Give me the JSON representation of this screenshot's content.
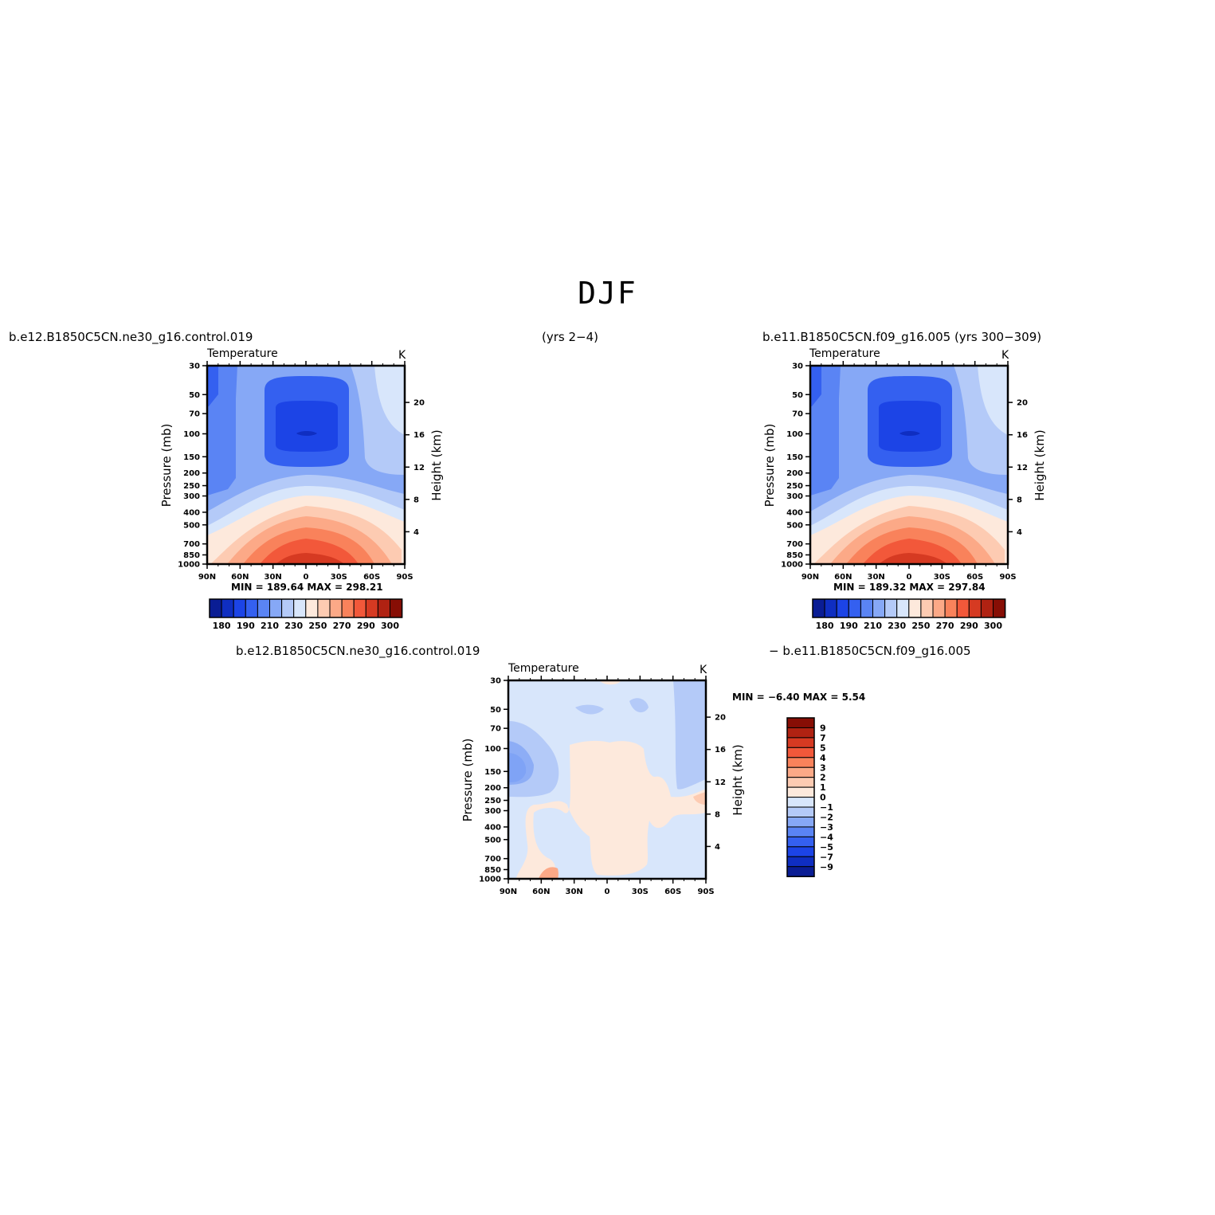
{
  "title": "DJF",
  "colors": {
    "scale": [
      "#0a1d94",
      "#0f2ec1",
      "#1c44e6",
      "#3460f0",
      "#5a84f4",
      "#86a8f6",
      "#b4caf8",
      "#d8e6fb",
      "#fde9dc",
      "#fdcbb2",
      "#fca987",
      "#f9825b",
      "#f2583a",
      "#d63a22",
      "#b02212",
      "#870e05"
    ]
  },
  "panels": {
    "left": {
      "case_left": "b.e12.B1850C5CN.ne30_g16.control.019",
      "case_right": "(yrs 2−4)",
      "variable": "Temperature",
      "units": "K",
      "min_label": "MIN = 189.64   MAX = 298.21"
    },
    "right": {
      "case_label": "b.e11.B1850C5CN.f09_g16.005 (yrs 300−309)",
      "variable": "Temperature",
      "units": "K",
      "min_label": "MIN = 189.32   MAX = 297.84"
    },
    "diff": {
      "case_left": "b.e12.B1850C5CN.ne30_g16.control.019",
      "case_right": "−  b.e11.B1850C5CN.f09_g16.005",
      "variable": "Temperature",
      "units": "K",
      "minmax": "MIN =   −6.40   MAX =     5.54"
    }
  },
  "axes": {
    "ylabel": "Pressure (mb)",
    "ylabel_right": "Height (km)",
    "pressure_ticks": [
      "30",
      "50",
      "70",
      "100",
      "150",
      "200",
      "250",
      "300",
      "400",
      "500",
      "700",
      "850",
      "1000"
    ],
    "height_ticks": [
      "20",
      "16",
      "12",
      "8",
      "4"
    ],
    "lat_ticks": [
      "90N",
      "60N",
      "30N",
      "0",
      "30S",
      "60S",
      "90S"
    ]
  },
  "colorbar_abs": {
    "labels": [
      "180",
      "190",
      "210",
      "230",
      "250",
      "270",
      "290",
      "300"
    ]
  },
  "colorbar_diff": {
    "labels": [
      "9",
      "7",
      "5",
      "4",
      "3",
      "2",
      "1",
      "0",
      "−1",
      "−2",
      "−3",
      "−4",
      "−5",
      "−7",
      "−9"
    ]
  },
  "chart_data": [
    {
      "type": "heatmap",
      "title": "Temperature",
      "units": "K",
      "ylabel": "Pressure (mb)",
      "ylabel_right": "Height (km)",
      "x_ticks": [
        "90N",
        "60N",
        "30N",
        "0",
        "30S",
        "60S",
        "90S"
      ],
      "y_ticks": [
        30,
        50,
        70,
        100,
        150,
        200,
        250,
        300,
        400,
        500,
        700,
        850,
        1000
      ],
      "y_scale": "log",
      "min": 189.64,
      "max": 298.21,
      "levels": [
        180,
        185,
        190,
        200,
        210,
        220,
        230,
        240,
        250,
        260,
        270,
        280,
        290,
        295,
        300
      ]
    },
    {
      "type": "heatmap",
      "title": "Temperature",
      "units": "K",
      "ylabel": "Pressure (mb)",
      "ylabel_right": "Height (km)",
      "x_ticks": [
        "90N",
        "60N",
        "30N",
        "0",
        "30S",
        "60S",
        "90S"
      ],
      "y_ticks": [
        30,
        50,
        70,
        100,
        150,
        200,
        250,
        300,
        400,
        500,
        700,
        850,
        1000
      ],
      "y_scale": "log",
      "min": 189.32,
      "max": 297.84,
      "levels": [
        180,
        185,
        190,
        200,
        210,
        220,
        230,
        240,
        250,
        260,
        270,
        280,
        290,
        295,
        300
      ]
    },
    {
      "type": "heatmap",
      "title": "Temperature",
      "units": "K",
      "ylabel": "Pressure (mb)",
      "ylabel_right": "Height (km)",
      "x_ticks": [
        "90N",
        "60N",
        "30N",
        "0",
        "30S",
        "60S",
        "90S"
      ],
      "y_ticks": [
        30,
        50,
        70,
        100,
        150,
        200,
        250,
        300,
        400,
        500,
        700,
        850,
        1000
      ],
      "y_scale": "log",
      "min": -6.4,
      "max": 5.54,
      "levels": [
        -9,
        -7,
        -5,
        -4,
        -3,
        -2,
        -1,
        0,
        1,
        2,
        3,
        4,
        5,
        7,
        9
      ]
    }
  ]
}
